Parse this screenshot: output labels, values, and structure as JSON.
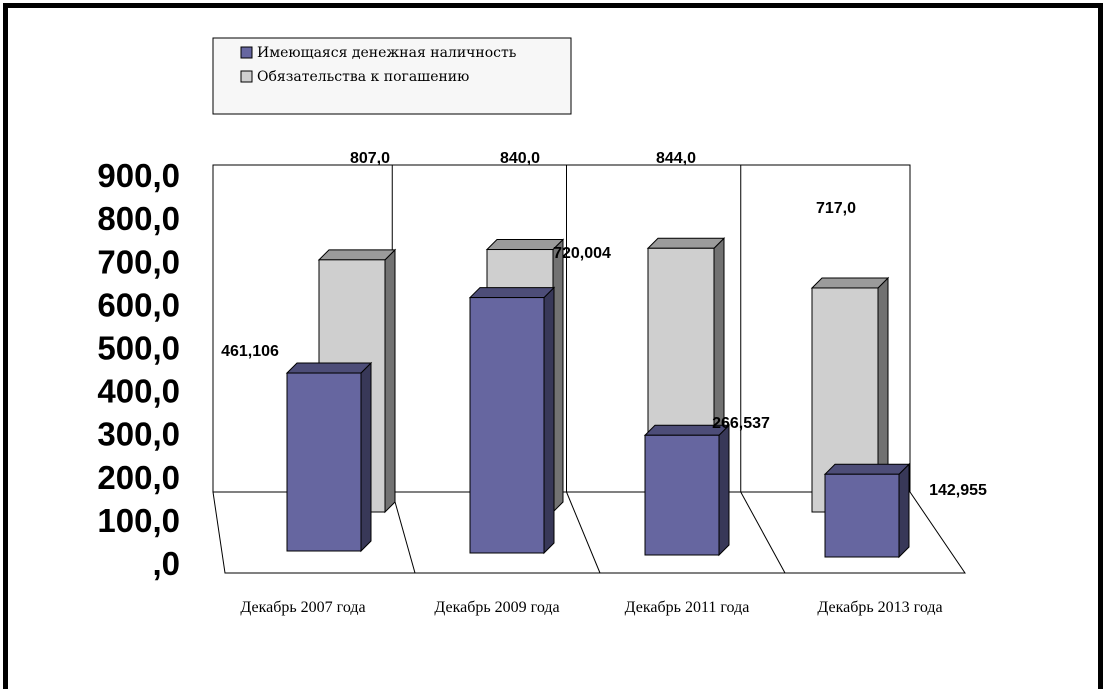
{
  "chart_data": {
    "type": "bar",
    "title": "",
    "xlabel": "",
    "ylabel": "",
    "categories": [
      "Декабрь 2007 года",
      "Декабрь 2009 года",
      "Декабрь 2011 года",
      "Декабрь 2013 года"
    ],
    "series": [
      {
        "name": "Имеющаяся денежная наличность",
        "values": [
          461.106,
          720.004,
          266.537,
          142.955
        ],
        "labels": [
          "461,106",
          "720,004",
          "266,537",
          "142,955"
        ],
        "color": "#6666a0"
      },
      {
        "name": "Обязательства к погашению",
        "values": [
          807.0,
          840.0,
          844.0,
          717.0
        ],
        "labels": [
          "807,0",
          "840,0",
          "844,0",
          "717,0"
        ],
        "color": "#cfcfcf"
      }
    ],
    "ylim": [
      0,
      900
    ],
    "yticks": [
      ",0",
      "100,0",
      "200,0",
      "300,0",
      "400,0",
      "500,0",
      "600,0",
      "700,0",
      "800,0",
      "900,0"
    ],
    "legend_position": "top-left",
    "grid": false
  }
}
